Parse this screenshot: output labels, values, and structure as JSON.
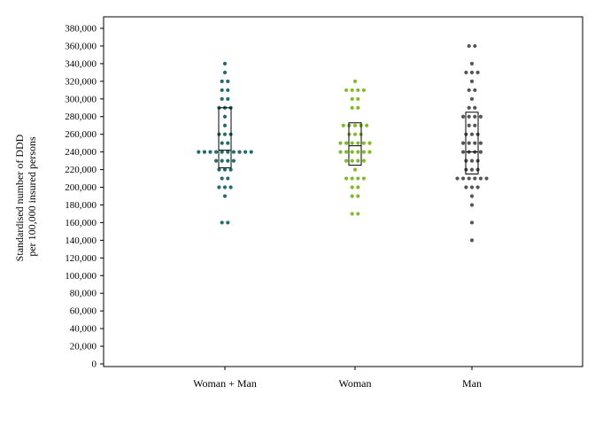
{
  "chart_data": {
    "type": "scatter",
    "subtype": "dot-plot-with-boxplot",
    "title": "",
    "xlabel": "",
    "ylabel_lines": [
      "Standardised number of DDD",
      "per 100,000 insured persons"
    ],
    "ylim": [
      0,
      390000
    ],
    "yticks": [
      0,
      20000,
      40000,
      60000,
      80000,
      100000,
      120000,
      140000,
      160000,
      180000,
      200000,
      220000,
      240000,
      260000,
      280000,
      300000,
      320000,
      340000,
      360000,
      380000
    ],
    "ytick_labels": [
      "0",
      "20,000",
      "40,000",
      "60,000",
      "80,000",
      "100,000",
      "120,000",
      "140,000",
      "160,000",
      "180,000",
      "200,000",
      "220,000",
      "240,000",
      "260,000",
      "280,000",
      "300,000",
      "320,000",
      "340,000",
      "360,000",
      "380,000"
    ],
    "categories": [
      "Woman + Man",
      "Woman",
      "Man"
    ],
    "grid": false,
    "legend": "none",
    "series": [
      {
        "category": "Woman + Man",
        "color": "#246b6b",
        "values": [
          160000,
          160000,
          190000,
          200000,
          200000,
          200000,
          210000,
          210000,
          220000,
          220000,
          220000,
          230000,
          230000,
          230000,
          230000,
          240000,
          240000,
          240000,
          240000,
          240000,
          240000,
          240000,
          240000,
          240000,
          240000,
          250000,
          250000,
          260000,
          260000,
          260000,
          270000,
          280000,
          290000,
          290000,
          290000,
          300000,
          300000,
          310000,
          310000,
          320000,
          320000,
          330000,
          340000
        ],
        "box": {
          "q1": 222000,
          "median": 242000,
          "q3": 290000
        }
      },
      {
        "category": "Woman",
        "color": "#84b92b",
        "values": [
          170000,
          170000,
          190000,
          190000,
          200000,
          200000,
          210000,
          210000,
          210000,
          210000,
          220000,
          230000,
          230000,
          230000,
          230000,
          240000,
          240000,
          240000,
          240000,
          240000,
          240000,
          250000,
          250000,
          250000,
          250000,
          250000,
          250000,
          260000,
          260000,
          260000,
          270000,
          270000,
          270000,
          270000,
          270000,
          290000,
          290000,
          300000,
          300000,
          310000,
          310000,
          310000,
          310000,
          320000
        ],
        "box": {
          "q1": 225000,
          "median": 247000,
          "q3": 273000
        }
      },
      {
        "category": "Man",
        "color": "#555555",
        "values": [
          140000,
          160000,
          180000,
          190000,
          200000,
          200000,
          200000,
          210000,
          210000,
          210000,
          210000,
          210000,
          210000,
          220000,
          220000,
          220000,
          230000,
          230000,
          230000,
          240000,
          240000,
          240000,
          240000,
          250000,
          250000,
          250000,
          250000,
          260000,
          260000,
          260000,
          270000,
          270000,
          280000,
          280000,
          280000,
          280000,
          290000,
          290000,
          300000,
          310000,
          310000,
          320000,
          330000,
          330000,
          330000,
          340000,
          360000,
          360000
        ],
        "box": {
          "q1": 215000,
          "median": 240000,
          "q3": 285000
        }
      }
    ]
  }
}
